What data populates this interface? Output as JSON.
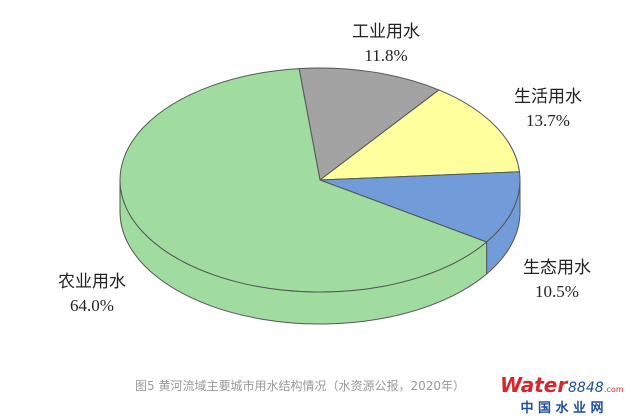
{
  "chart_data": {
    "type": "pie3d",
    "categories": [
      "工业用水",
      "生活用水",
      "生态用水",
      "农业用水"
    ],
    "values": [
      11.8,
      13.7,
      10.5,
      64.0
    ],
    "value_labels": [
      "11.8%",
      "13.7%",
      "10.5%",
      "64.0%"
    ],
    "colors": [
      "#a3a3a3",
      "#ffff9e",
      "#729bd9",
      "#a0dca0"
    ],
    "caption": "图5 黄河流域主要城市用水结构情况（水资源公报，2020年）"
  },
  "watermark": {
    "brand": "Water",
    "number": "8848",
    "domain": ".com",
    "tagline": "中 国 水 业 网"
  }
}
